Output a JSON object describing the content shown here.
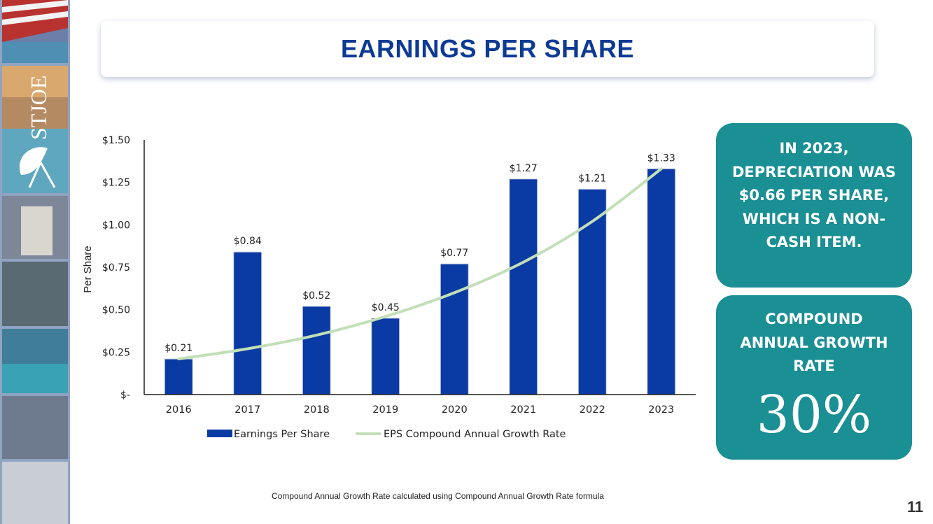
{
  "title": "EARNINGS PER SHARE",
  "logo_text": "STJOE",
  "colors": {
    "bar": "#0a3aa3",
    "trend": "#c2dfb8",
    "card": "#1a8f94",
    "title": "#0d3a94"
  },
  "card_depreciation": {
    "text": "IN 2023, DEPRECIATION WAS $0.66 PER SHARE, WHICH IS A NON-CASH ITEM."
  },
  "card_cagr": {
    "label": "COMPOUND ANNUAL GROWTH RATE",
    "value": "30%"
  },
  "footnote": "Compound Annual Growth Rate calculated using Compound Annual Growth Rate formula",
  "page_number": "11",
  "chart_data": {
    "type": "bar",
    "ylabel": "Per Share",
    "xlabel": "",
    "ylim": [
      0,
      1.5
    ],
    "yticks": [
      {
        "value": 0,
        "label": "$-"
      },
      {
        "value": 0.25,
        "label": "$0.25"
      },
      {
        "value": 0.5,
        "label": "$0.50"
      },
      {
        "value": 0.75,
        "label": "$0.75"
      },
      {
        "value": 1.0,
        "label": "$1.00"
      },
      {
        "value": 1.25,
        "label": "$1.25"
      },
      {
        "value": 1.5,
        "label": "$1.50"
      }
    ],
    "categories": [
      "2016",
      "2017",
      "2018",
      "2019",
      "2020",
      "2021",
      "2022",
      "2023"
    ],
    "series": [
      {
        "name": "Earnings Per Share",
        "type": "bar",
        "values": [
          0.21,
          0.84,
          0.52,
          0.45,
          0.77,
          1.27,
          1.21,
          1.33
        ],
        "labels": [
          "$0.21",
          "$0.84",
          "$0.52",
          "$0.45",
          "$0.77",
          "$1.27",
          "$1.21",
          "$1.33"
        ]
      },
      {
        "name": "EPS Compound Annual Growth Rate",
        "type": "line",
        "values": [
          0.21,
          0.27,
          0.35,
          0.46,
          0.6,
          0.78,
          1.02,
          1.33
        ]
      }
    ],
    "legend": "bottom",
    "grid": false
  }
}
